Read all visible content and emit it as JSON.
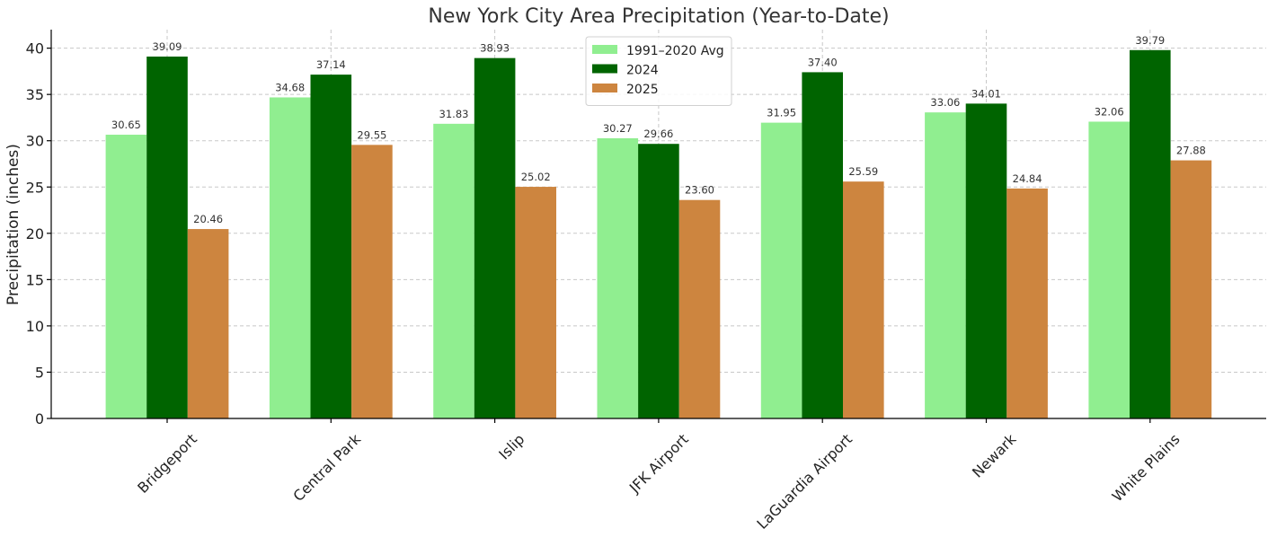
{
  "chart_data": {
    "type": "bar",
    "title": "New York City Area Precipitation (Year-to-Date)",
    "xlabel": "",
    "ylabel": "Precipitation (inches)",
    "ylim": [
      0,
      42
    ],
    "yticks": [
      0,
      5,
      10,
      15,
      20,
      25,
      30,
      35,
      40
    ],
    "grid": true,
    "legend_position": "top-center",
    "categories": [
      "Bridgeport",
      "Central Park",
      "Islip",
      "JFK Airport",
      "LaGuardia Airport",
      "Newark",
      "White Plains"
    ],
    "series": [
      {
        "name": "1991–2020 Avg",
        "color": "#90ee90",
        "values": [
          30.65,
          34.68,
          31.83,
          30.27,
          31.95,
          33.06,
          32.06
        ]
      },
      {
        "name": "2024",
        "color": "#006400",
        "values": [
          39.09,
          37.14,
          38.93,
          29.66,
          37.4,
          34.01,
          39.79
        ]
      },
      {
        "name": "2025",
        "color": "#cd853f",
        "values": [
          20.46,
          29.55,
          25.02,
          23.6,
          25.59,
          24.84,
          27.88
        ]
      }
    ]
  }
}
